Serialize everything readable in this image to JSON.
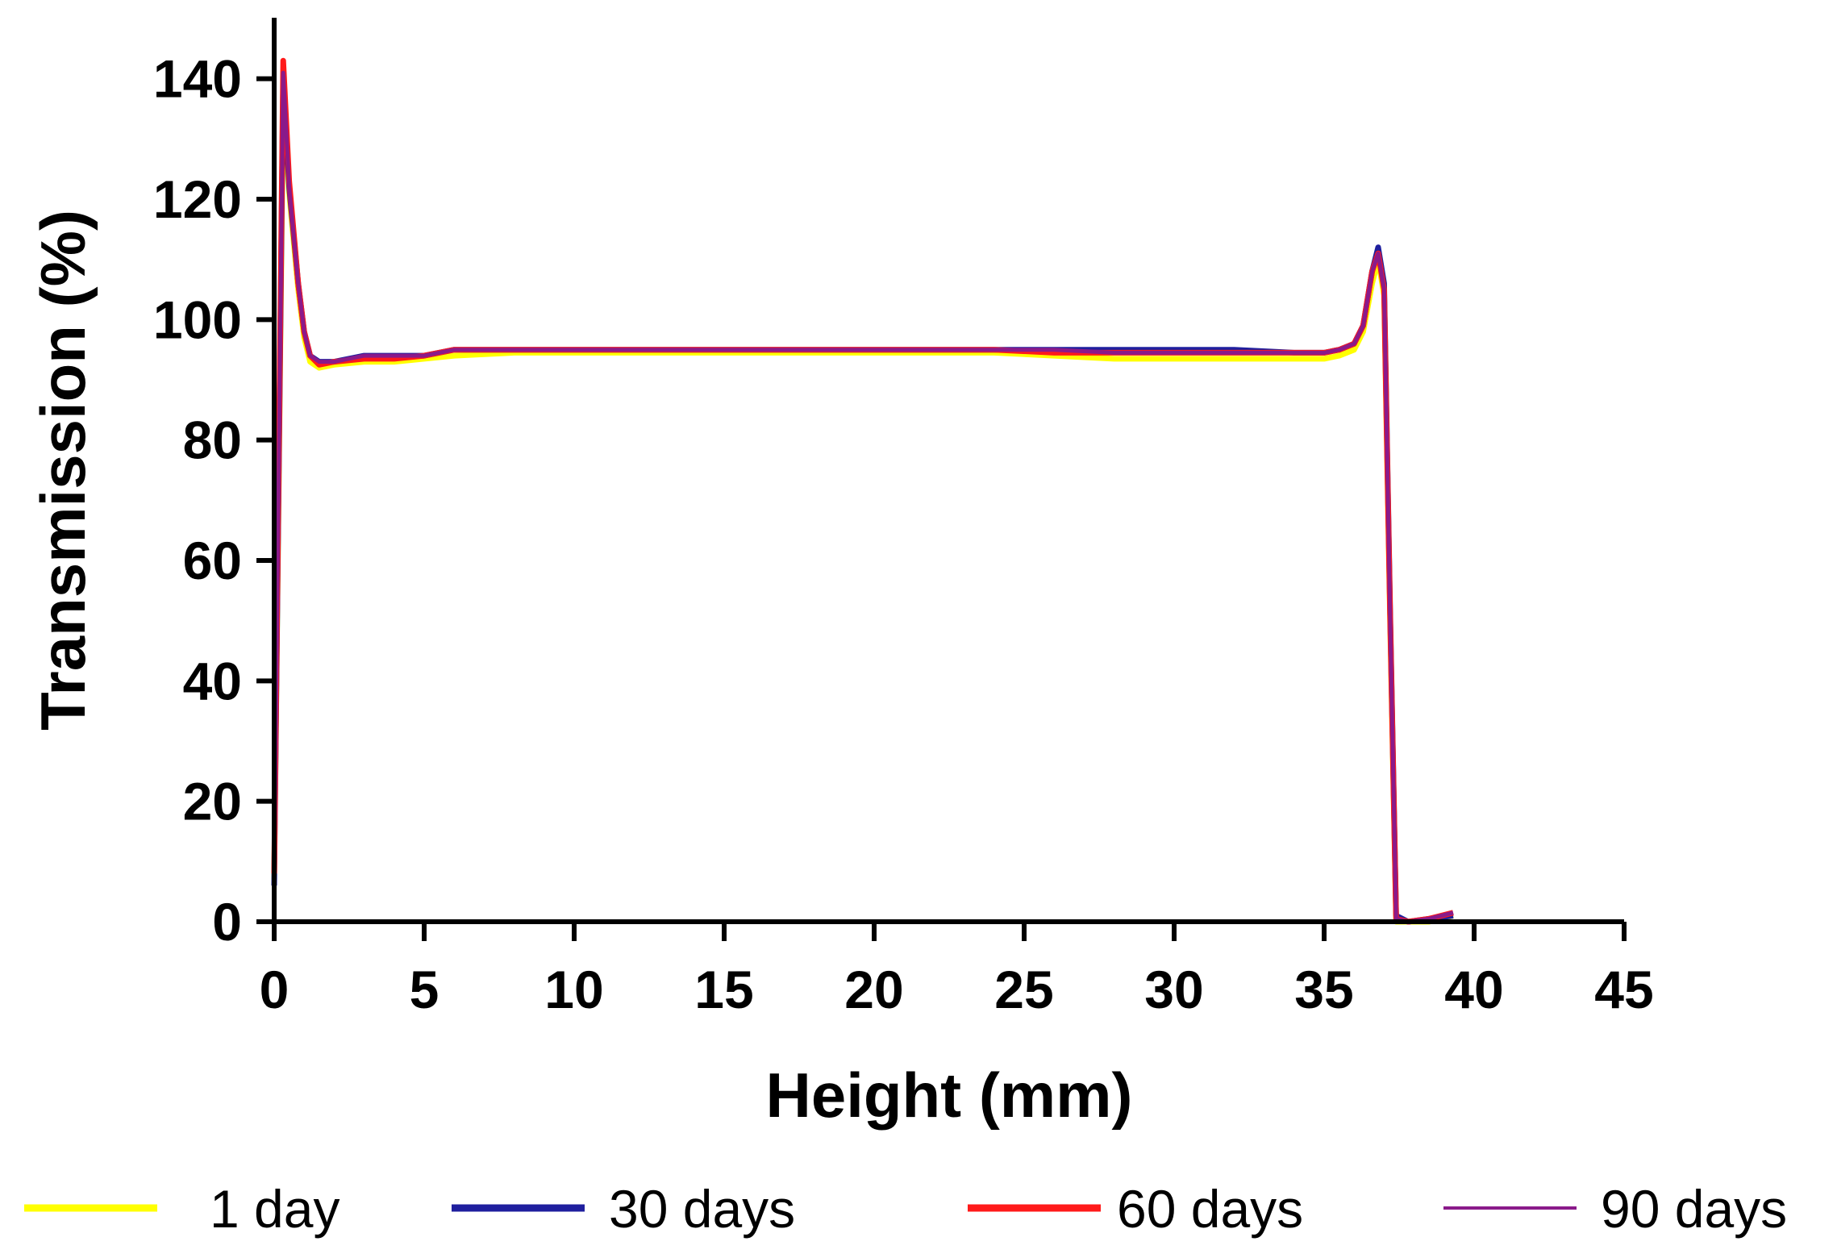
{
  "chart_data": {
    "type": "line",
    "xlabel": "Height (mm)",
    "ylabel": "Transmission (%)",
    "xlim": [
      0,
      45
    ],
    "ylim": [
      0,
      150
    ],
    "x_ticks": [
      0,
      5,
      10,
      15,
      20,
      25,
      30,
      35,
      40,
      45
    ],
    "y_ticks": [
      0,
      20,
      40,
      60,
      80,
      100,
      120,
      140
    ],
    "grid": false,
    "legend_position": "bottom",
    "series": [
      {
        "name": "1 day",
        "color": "#ffff00",
        "x": [
          0,
          0.3,
          0.5,
          0.8,
          1.0,
          1.2,
          1.5,
          2,
          3,
          4,
          5,
          6,
          8,
          10,
          12,
          14,
          15,
          16,
          18,
          20,
          22,
          24,
          26,
          28,
          30,
          32,
          34,
          35,
          35.5,
          36,
          36.3,
          36.6,
          36.8,
          37.0,
          37.2,
          37.4,
          37.8,
          38.5,
          39.3
        ],
        "y": [
          7,
          137,
          121,
          105,
          97,
          93,
          92,
          92.5,
          93,
          93,
          93.5,
          94,
          94.5,
          94.5,
          94.5,
          94.5,
          94.5,
          94.5,
          94.5,
          94.5,
          94.5,
          94.5,
          94,
          93.5,
          93.5,
          93.5,
          93.5,
          93.5,
          94,
          95,
          98,
          106,
          110,
          104,
          50,
          0,
          0,
          0,
          1
        ]
      },
      {
        "name": "30 days",
        "color": "#1f1f9e",
        "x": [
          0,
          0.3,
          0.5,
          0.8,
          1.0,
          1.2,
          1.5,
          2,
          3,
          4,
          5,
          6,
          8,
          10,
          12,
          14,
          15,
          16,
          18,
          20,
          22,
          24,
          26,
          28,
          30,
          32,
          34,
          35,
          35.5,
          36,
          36.3,
          36.6,
          36.8,
          37.0,
          37.2,
          37.4,
          37.8,
          38.5,
          39.3
        ],
        "y": [
          6,
          140,
          122,
          106,
          98,
          94,
          93,
          93,
          94,
          94,
          94,
          95,
          95,
          95,
          95,
          95,
          95,
          95,
          95,
          95,
          95,
          95,
          95,
          95,
          95,
          95,
          94.5,
          94.5,
          95,
          96,
          99,
          108,
          112,
          106,
          52,
          1,
          0,
          0.5,
          1
        ]
      },
      {
        "name": "60 days",
        "color": "#ff1a1a",
        "x": [
          0,
          0.3,
          0.5,
          0.8,
          1.0,
          1.2,
          1.5,
          2,
          3,
          4,
          5,
          6,
          8,
          10,
          12,
          14,
          15,
          16,
          18,
          20,
          22,
          24,
          26,
          28,
          30,
          32,
          34,
          35,
          35.5,
          36,
          36.3,
          36.6,
          36.8,
          37.0,
          37.2,
          37.4,
          37.8,
          38.5,
          39.3
        ],
        "y": [
          8,
          143,
          123,
          106,
          98,
          94,
          92.5,
          93,
          93.5,
          93.5,
          94,
          95,
          95,
          95,
          95,
          95,
          95,
          95,
          95,
          95,
          95,
          95,
          94.5,
          94.5,
          94.5,
          94.5,
          94.5,
          94.5,
          95,
          96,
          99,
          108,
          111,
          105,
          51,
          0.5,
          0,
          0.5,
          1.5
        ]
      },
      {
        "name": "90 days",
        "color": "#8a1a8a",
        "x": [
          0,
          0.3,
          0.5,
          0.8,
          1.0,
          1.2,
          1.5,
          2,
          3,
          4,
          5,
          6,
          8,
          10,
          12,
          14,
          15,
          16,
          18,
          20,
          22,
          24,
          26,
          28,
          30,
          32,
          34,
          35,
          35.5,
          36,
          36.3,
          36.6,
          36.8,
          37.0,
          37.2,
          37.4,
          37.8,
          38.5,
          39.3
        ],
        "y": [
          7,
          141,
          122,
          106,
          98,
          94,
          93,
          93,
          94,
          94,
          94,
          95,
          95,
          95,
          95,
          95,
          95,
          95,
          95,
          95,
          95,
          95,
          95,
          94.5,
          94.5,
          94.5,
          94.5,
          94.5,
          95,
          96,
          99,
          108,
          111,
          105,
          51,
          0.5,
          0,
          0.5,
          1.5
        ]
      }
    ]
  }
}
